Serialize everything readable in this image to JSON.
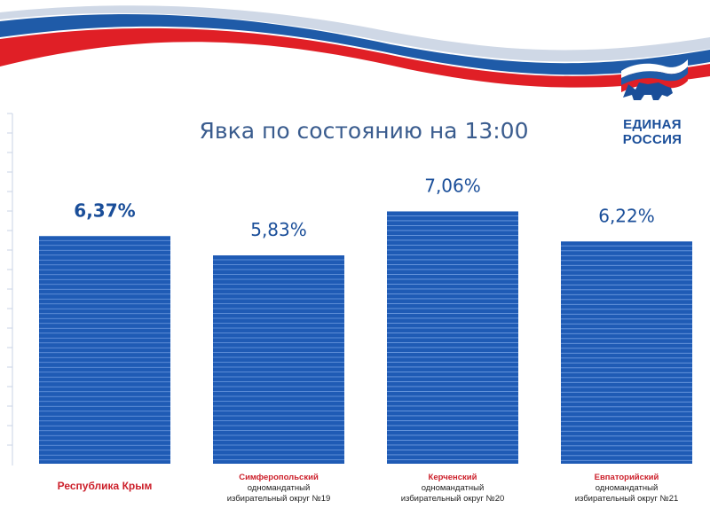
{
  "header": {
    "logo_line1": "ЕДИНАЯ",
    "logo_line2": "РОССИЯ",
    "colors": {
      "brand_blue": "#1a4e99",
      "flag_red": "#e01f26",
      "flag_blue": "#1f5ba8"
    }
  },
  "chart_data": {
    "type": "bar",
    "title": "Явка по состоянию на 13:00",
    "categories": [
      "Республика Крым",
      "Симферопольский одномандатный избирательный округ №19",
      "Керченский одномандатный избирательный округ №20",
      "Евпаторийский одномандатный избирательный округ №21"
    ],
    "category_lines": [
      [
        "Республика Крым"
      ],
      [
        "Симферопольский",
        "одномандатный",
        "избирательный округ №19"
      ],
      [
        "Керченский",
        "одномандатный",
        "избирательный округ №20"
      ],
      [
        "Евпаторийский",
        "одномандатный",
        "избирательный округ №21"
      ]
    ],
    "values": [
      6.37,
      5.83,
      7.06,
      6.22
    ],
    "value_labels": [
      "6,37%",
      "5,83%",
      "7,06%",
      "6,22%"
    ],
    "highlight_index": 0,
    "ylim": [
      0,
      9.8
    ],
    "bar_color": "#1f5bb5",
    "stripe_color": "#6f9be0",
    "label_color": "#1a4e99",
    "grid": false
  }
}
